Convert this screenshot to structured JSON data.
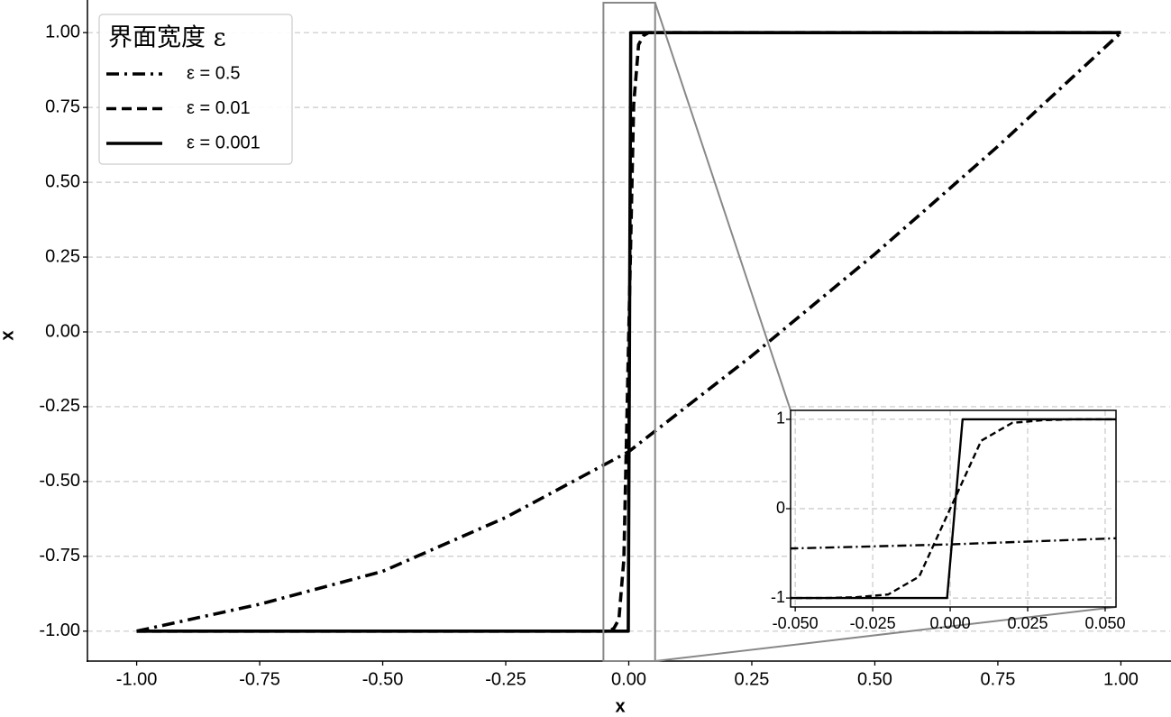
{
  "chart_data": {
    "type": "line",
    "x_label": "x",
    "y_label": "x",
    "legend_title": "界面宽度 ε",
    "legend_loc": "upper left",
    "grid": "y",
    "xlim": [
      -1.1,
      1.1
    ],
    "ylim": [
      -1.1,
      1.1
    ],
    "xticks": [
      {
        "value": -1,
        "label": "-1.00"
      },
      {
        "value": -0.75,
        "label": "-0.75"
      },
      {
        "value": -0.5,
        "label": "-0.50"
      },
      {
        "value": -0.25,
        "label": "-0.25"
      },
      {
        "value": 0,
        "label": "0.00"
      },
      {
        "value": 0.25,
        "label": "0.25"
      },
      {
        "value": 0.5,
        "label": "0.50"
      },
      {
        "value": 0.75,
        "label": "0.75"
      },
      {
        "value": 1,
        "label": "1.00"
      }
    ],
    "yticks": [
      {
        "value": -1,
        "label": "-1.00"
      },
      {
        "value": -0.75,
        "label": "-0.75"
      },
      {
        "value": -0.5,
        "label": "-0.50"
      },
      {
        "value": -0.25,
        "label": "-0.25"
      },
      {
        "value": 0,
        "label": "0.00"
      },
      {
        "value": 0.25,
        "label": "0.25"
      },
      {
        "value": 0.5,
        "label": "0.50"
      },
      {
        "value": 0.75,
        "label": "0.75"
      },
      {
        "value": 1,
        "label": "1.00"
      }
    ],
    "series": [
      {
        "name": "ε = 0.5",
        "color": "#000000",
        "linestyle": "dashdot",
        "x": [
          -1,
          -0.75,
          -0.5,
          -0.25,
          0,
          0.25,
          0.5,
          0.75,
          1
        ],
        "values": [
          -1,
          -0.91,
          -0.8,
          -0.62,
          -0.4,
          -0.08,
          0.26,
          0.62,
          1
        ]
      },
      {
        "name": "ε = 0.01",
        "color": "#000000",
        "linestyle": "dashed",
        "x": [
          -1,
          -0.05,
          -0.04,
          -0.03,
          -0.02,
          -0.01,
          0,
          0.01,
          0.02,
          0.03,
          0.04,
          0.05,
          1
        ],
        "values": [
          -1,
          -1,
          -1,
          -0.99,
          -0.96,
          -0.76,
          0,
          0.76,
          0.96,
          0.99,
          1,
          1,
          1
        ]
      },
      {
        "name": "ε = 0.001",
        "color": "#000000",
        "linestyle": "solid",
        "x": [
          -1,
          -0.001,
          0.004,
          1
        ],
        "values": [
          -1,
          -1,
          1,
          1
        ]
      }
    ],
    "inset": {
      "xlim": [
        -0.0515,
        0.0535
      ],
      "ylim": [
        -1.1,
        1.1
      ],
      "grid": true,
      "xticks": [
        {
          "value": -0.05,
          "label": "-0.050"
        },
        {
          "value": -0.025,
          "label": "-0.025"
        },
        {
          "value": 0,
          "label": "0.000"
        },
        {
          "value": 0.025,
          "label": "0.025"
        },
        {
          "value": 0.05,
          "label": "0.050"
        }
      ],
      "yticks": [
        -1,
        0,
        1
      ]
    }
  }
}
